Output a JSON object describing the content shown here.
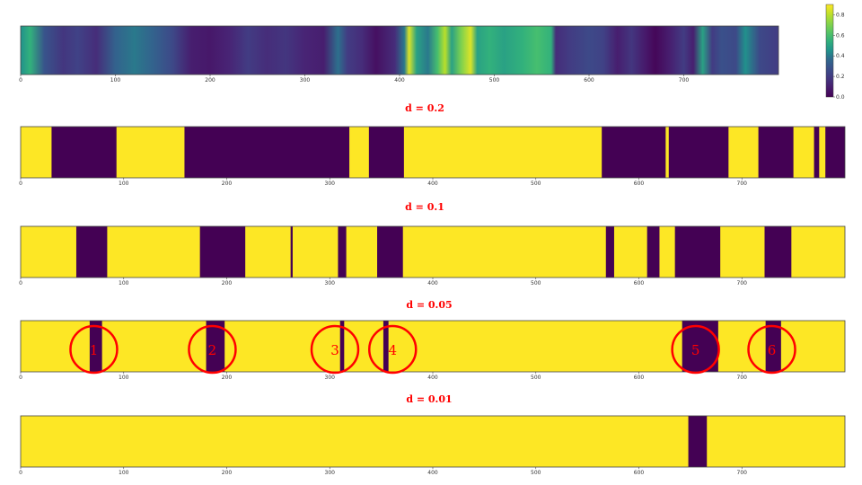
{
  "chart_data": {
    "type": "heatmap",
    "colorbar": {
      "ticks": [
        0.8,
        0.6,
        0.4,
        0.2,
        0.0
      ],
      "tick_labels": [
        "0.8",
        "0.6",
        "0.4",
        "0.2",
        "0.0"
      ],
      "range": [
        0.0,
        0.9
      ],
      "colormap": "viridis"
    },
    "panels": [
      {
        "name": "signal",
        "title": "",
        "xlim": [
          0,
          800
        ],
        "xticks": [
          0,
          100,
          200,
          300,
          400,
          500,
          600,
          700
        ],
        "profile": [
          [
            0,
            0.45
          ],
          [
            10,
            0.55
          ],
          [
            25,
            0.3
          ],
          [
            45,
            0.18
          ],
          [
            60,
            0.22
          ],
          [
            80,
            0.15
          ],
          [
            100,
            0.35
          ],
          [
            120,
            0.4
          ],
          [
            140,
            0.35
          ],
          [
            160,
            0.25
          ],
          [
            180,
            0.1
          ],
          [
            200,
            0.08
          ],
          [
            220,
            0.12
          ],
          [
            240,
            0.2
          ],
          [
            260,
            0.15
          ],
          [
            280,
            0.18
          ],
          [
            300,
            0.12
          ],
          [
            320,
            0.1
          ],
          [
            335,
            0.38
          ],
          [
            345,
            0.2
          ],
          [
            360,
            0.15
          ],
          [
            375,
            0.05
          ],
          [
            395,
            0.15
          ],
          [
            405,
            0.4
          ],
          [
            410,
            0.85
          ],
          [
            418,
            0.5
          ],
          [
            430,
            0.4
          ],
          [
            440,
            0.6
          ],
          [
            448,
            0.8
          ],
          [
            455,
            0.5
          ],
          [
            465,
            0.7
          ],
          [
            475,
            0.85
          ],
          [
            482,
            0.5
          ],
          [
            495,
            0.55
          ],
          [
            510,
            0.5
          ],
          [
            530,
            0.55
          ],
          [
            545,
            0.6
          ],
          [
            560,
            0.55
          ],
          [
            565,
            0.15
          ],
          [
            580,
            0.2
          ],
          [
            600,
            0.25
          ],
          [
            615,
            0.22
          ],
          [
            630,
            0.1
          ],
          [
            645,
            0.18
          ],
          [
            660,
            0.08
          ],
          [
            670,
            0.02
          ],
          [
            685,
            0.1
          ],
          [
            700,
            0.2
          ],
          [
            710,
            0.1
          ],
          [
            720,
            0.5
          ],
          [
            730,
            0.2
          ],
          [
            740,
            0.28
          ],
          [
            755,
            0.25
          ],
          [
            765,
            0.45
          ],
          [
            780,
            0.25
          ],
          [
            800,
            0.2
          ]
        ]
      },
      {
        "name": "d02",
        "title": "d = 0.2",
        "xlim": [
          0,
          800
        ],
        "xticks": [
          0,
          100,
          200,
          300,
          400,
          500,
          600,
          700
        ],
        "dark_intervals": [
          [
            30,
            93
          ],
          [
            159,
            319
          ],
          [
            338,
            372
          ],
          [
            564,
            626
          ],
          [
            629,
            687
          ],
          [
            716,
            750
          ],
          [
            770,
            775
          ],
          [
            781,
            800
          ]
        ]
      },
      {
        "name": "d01",
        "title": "d = 0.1",
        "xlim": [
          0,
          800
        ],
        "xticks": [
          0,
          100,
          200,
          300,
          400,
          500,
          600,
          700
        ],
        "dark_intervals": [
          [
            54,
            84
          ],
          [
            174,
            218
          ],
          [
            262,
            264
          ],
          [
            308,
            316
          ],
          [
            346,
            371
          ],
          [
            568,
            576
          ],
          [
            608,
            620
          ],
          [
            635,
            679
          ],
          [
            722,
            748
          ]
        ]
      },
      {
        "name": "d005",
        "title": "d = 0.05",
        "xlim": [
          0,
          800
        ],
        "xticks": [
          0,
          100,
          200,
          300,
          400,
          500,
          600,
          700
        ],
        "dark_intervals": [
          [
            67,
            79
          ],
          [
            180,
            198
          ],
          [
            310,
            314
          ],
          [
            352,
            357
          ],
          [
            642,
            677
          ],
          [
            723,
            738
          ]
        ],
        "annotations": [
          {
            "label": "1",
            "x": 71
          },
          {
            "label": "2",
            "x": 186
          },
          {
            "label": "3",
            "x": 305
          },
          {
            "label": "4",
            "x": 361
          },
          {
            "label": "5",
            "x": 655
          },
          {
            "label": "6",
            "x": 729
          }
        ]
      },
      {
        "name": "d001",
        "title": "d = 0.01",
        "xlim": [
          0,
          800
        ],
        "xticks": [
          0,
          100,
          200,
          300,
          400,
          500,
          600,
          700
        ],
        "dark_intervals": [
          [
            648,
            666
          ]
        ]
      }
    ]
  },
  "colors": {
    "low": "#440154",
    "high": "#fde725",
    "annotation": "#ff0000",
    "axis": "#444444"
  }
}
